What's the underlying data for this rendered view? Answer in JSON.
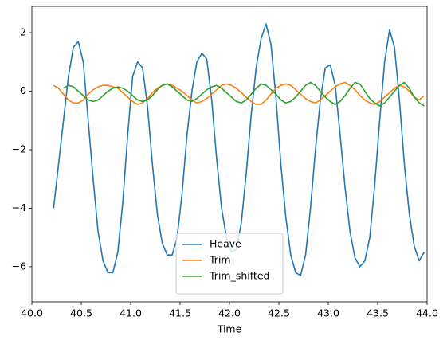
{
  "chart_data": {
    "type": "line",
    "xlabel": "Time",
    "x": [
      40.22,
      40.27,
      40.32,
      40.37,
      40.42,
      40.47,
      40.52,
      40.57,
      40.62,
      40.67,
      40.72,
      40.77,
      40.82,
      40.87,
      40.92,
      40.97,
      41.02,
      41.07,
      41.12,
      41.17,
      41.22,
      41.27,
      41.32,
      41.37,
      41.42,
      41.47,
      41.52,
      41.57,
      41.62,
      41.67,
      41.72,
      41.77,
      41.82,
      41.87,
      41.92,
      41.97,
      42.02,
      42.07,
      42.12,
      42.17,
      42.22,
      42.27,
      42.32,
      42.37,
      42.42,
      42.47,
      42.52,
      42.57,
      42.62,
      42.67,
      42.72,
      42.77,
      42.82,
      42.87,
      42.92,
      42.97,
      43.02,
      43.07,
      43.12,
      43.17,
      43.22,
      43.27,
      43.32,
      43.37,
      43.42,
      43.47,
      43.52,
      43.57,
      43.62,
      43.67,
      43.72,
      43.77,
      43.82,
      43.87,
      43.92,
      43.97
    ],
    "series": [
      {
        "name": "Heave",
        "color": "#1f77b4",
        "values": [
          -4.0,
          -2.5,
          -1.0,
          0.5,
          1.5,
          1.7,
          1.0,
          -1.0,
          -3.0,
          -4.8,
          -5.8,
          -6.2,
          -6.2,
          -5.5,
          -3.8,
          -1.5,
          0.5,
          1.0,
          0.8,
          -0.5,
          -2.5,
          -4.2,
          -5.2,
          -5.6,
          -5.6,
          -5.0,
          -3.5,
          -1.5,
          0.0,
          1.0,
          1.3,
          1.1,
          -0.3,
          -2.3,
          -4.0,
          -5.0,
          -5.5,
          -5.4,
          -4.5,
          -2.8,
          -0.8,
          0.8,
          1.8,
          2.3,
          1.6,
          -0.2,
          -2.5,
          -4.3,
          -5.6,
          -6.2,
          -6.3,
          -5.6,
          -4.0,
          -2.0,
          -0.3,
          0.8,
          0.9,
          0.2,
          -1.5,
          -3.3,
          -4.8,
          -5.7,
          -6.0,
          -5.8,
          -5.0,
          -3.2,
          -1.0,
          1.0,
          2.1,
          1.5,
          -0.3,
          -2.5,
          -4.2,
          -5.3,
          -5.8,
          -5.5
        ]
      },
      {
        "name": "Trim",
        "color": "#ff7f0e",
        "values": [
          0.2,
          0.1,
          -0.1,
          -0.3,
          -0.4,
          -0.4,
          -0.3,
          -0.1,
          0.05,
          0.15,
          0.2,
          0.2,
          0.15,
          0.1,
          -0.05,
          -0.2,
          -0.35,
          -0.45,
          -0.4,
          -0.25,
          -0.05,
          0.1,
          0.2,
          0.25,
          0.2,
          0.1,
          0.0,
          -0.15,
          -0.3,
          -0.4,
          -0.35,
          -0.25,
          -0.1,
          0.05,
          0.2,
          0.25,
          0.2,
          0.1,
          -0.05,
          -0.2,
          -0.35,
          -0.45,
          -0.45,
          -0.3,
          -0.1,
          0.1,
          0.2,
          0.25,
          0.2,
          0.05,
          -0.1,
          -0.25,
          -0.35,
          -0.4,
          -0.3,
          -0.15,
          0.0,
          0.15,
          0.25,
          0.3,
          0.2,
          0.05,
          -0.15,
          -0.3,
          -0.4,
          -0.45,
          -0.35,
          -0.2,
          -0.05,
          0.1,
          0.2,
          0.15,
          0.0,
          -0.2,
          -0.3,
          -0.15
        ]
      },
      {
        "name": "Trim_shifted",
        "color": "#2ca02c",
        "values": [
          null,
          null,
          0.1,
          0.2,
          0.15,
          0.0,
          -0.15,
          -0.3,
          -0.35,
          -0.3,
          -0.15,
          0.0,
          0.1,
          0.15,
          0.1,
          0.0,
          -0.15,
          -0.3,
          -0.35,
          -0.3,
          -0.15,
          0.05,
          0.2,
          0.25,
          0.15,
          0.0,
          -0.15,
          -0.3,
          -0.35,
          -0.25,
          -0.1,
          0.05,
          0.15,
          0.2,
          0.1,
          -0.05,
          -0.2,
          -0.35,
          -0.4,
          -0.3,
          -0.1,
          0.1,
          0.25,
          0.2,
          0.05,
          -0.1,
          -0.3,
          -0.4,
          -0.35,
          -0.2,
          0.0,
          0.2,
          0.3,
          0.2,
          0.0,
          -0.2,
          -0.35,
          -0.45,
          -0.35,
          -0.15,
          0.1,
          0.3,
          0.25,
          0.0,
          -0.25,
          -0.4,
          -0.5,
          -0.4,
          -0.2,
          0.0,
          0.2,
          0.3,
          0.1,
          -0.2,
          -0.4,
          -0.5
        ]
      }
    ],
    "xlim": [
      40,
      44
    ],
    "xticks": [
      {
        "value": 40,
        "label": "40.0"
      },
      40.5,
      {
        "value": 41,
        "label": "41.0"
      },
      41.5,
      {
        "value": 42,
        "label": "42.0"
      },
      42.5,
      {
        "value": 43,
        "label": "43.0"
      },
      43.5,
      {
        "value": 44,
        "label": "44.0"
      }
    ],
    "ylim": [
      -7.2,
      2.9
    ],
    "yticks": [
      {
        "value": -6,
        "label": "−6"
      },
      {
        "value": -4,
        "label": "−4"
      },
      {
        "value": -2,
        "label": "−2"
      },
      0,
      2
    ],
    "legend": "lower center",
    "grid": false
  }
}
